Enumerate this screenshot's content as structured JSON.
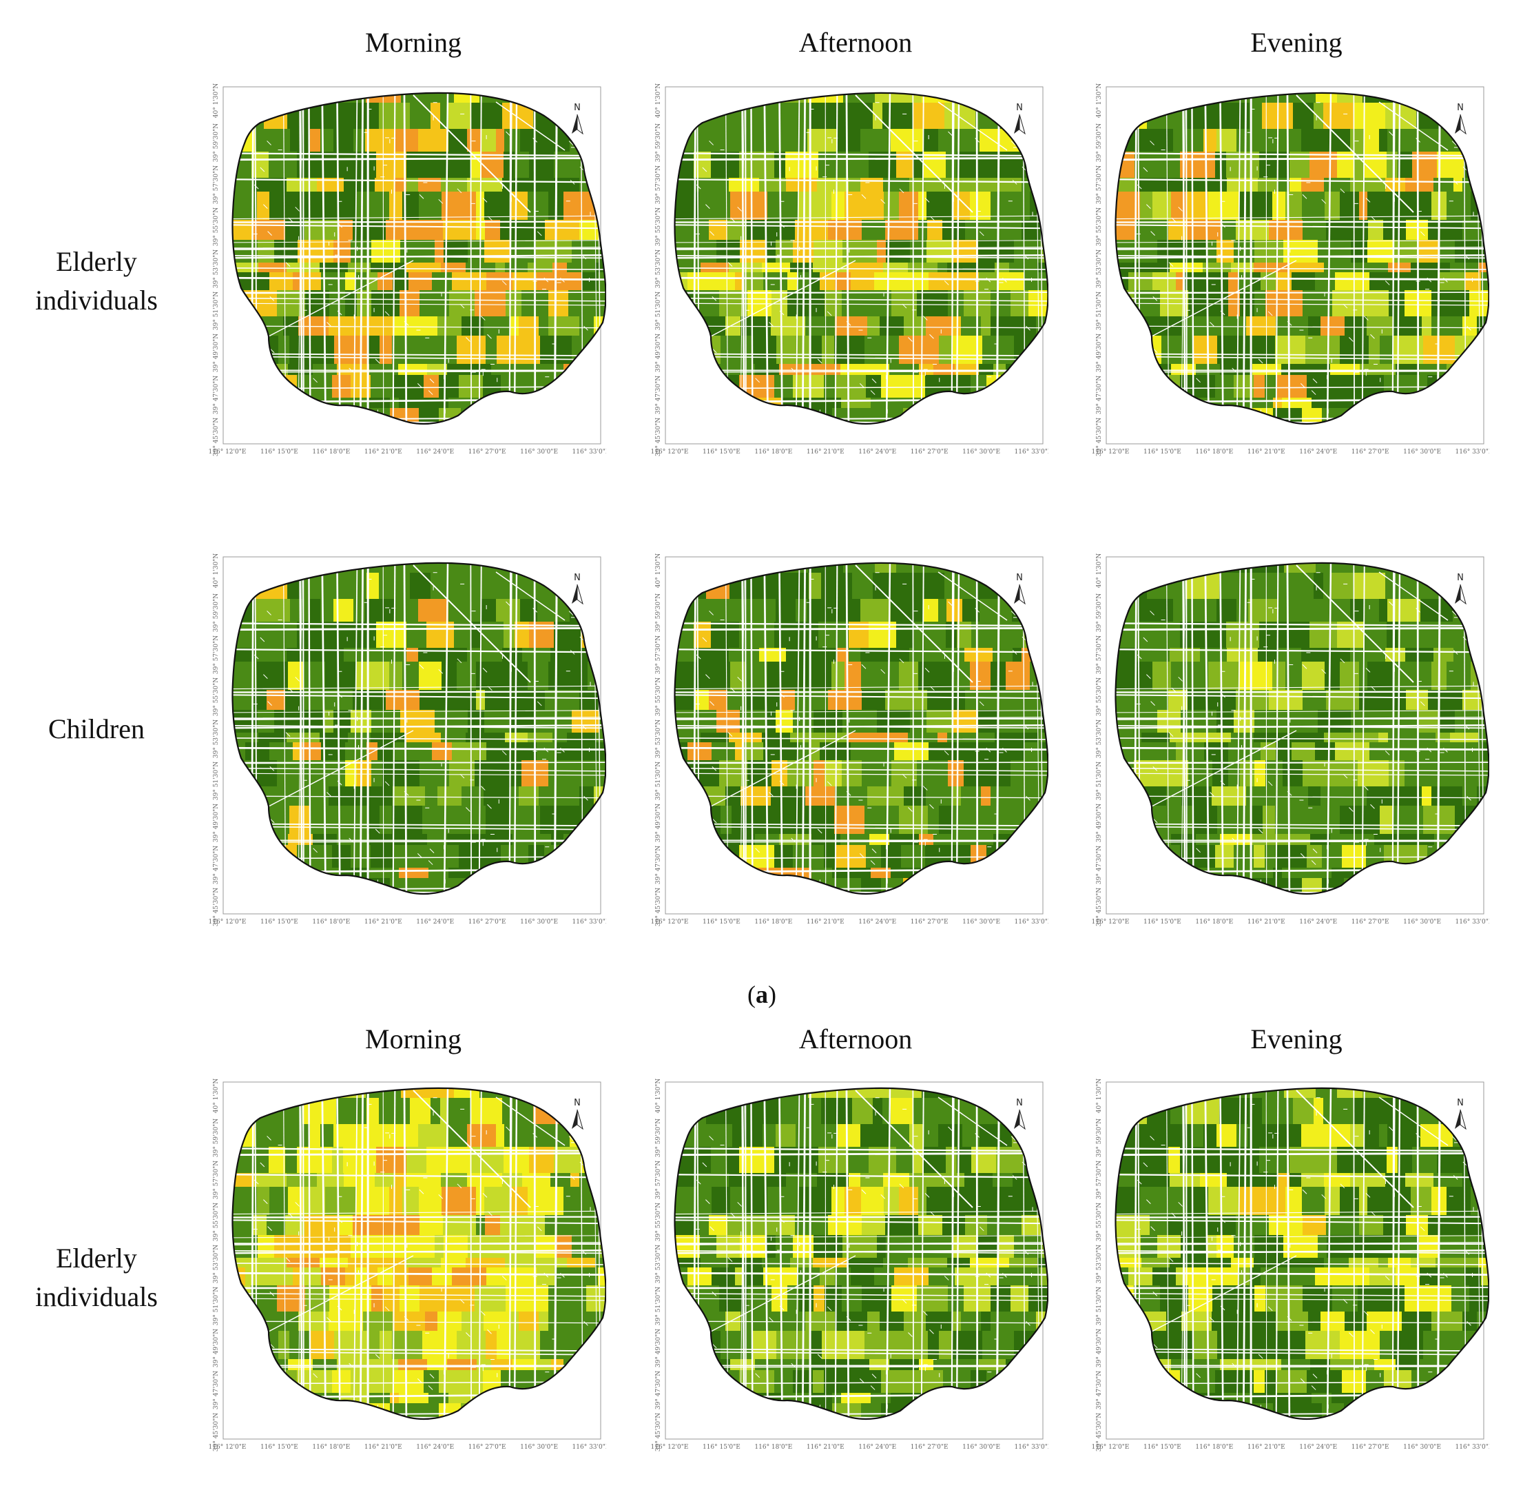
{
  "columns": [
    "Morning",
    "Afternoon",
    "Evening"
  ],
  "sections": [
    {
      "rows": [
        "Elderly individuals",
        "Children"
      ],
      "caption": {
        "open": "(",
        "letter": "a",
        "close": ")"
      }
    },
    {
      "rows": [
        "Elderly individuals"
      ]
    }
  ],
  "north_label": "N",
  "x_ticks": [
    "116° 12'0\"E",
    "116° 15'0\"E",
    "116° 18'0\"E",
    "116° 21'0\"E",
    "116° 24'0\"E",
    "116° 27'0\"E",
    "116° 30'0\"E",
    "116° 33'0\"E"
  ],
  "y_ticks": [
    "39° 45'30\"N",
    "39° 47'30\"N",
    "39° 49'30\"N",
    "39° 51'30\"N",
    "39° 53'30\"N",
    "39° 55'30\"N",
    "39° 57'30\"N",
    "39° 59'30\"N",
    "40° 1'30\"N"
  ],
  "colors": {
    "dark_green": "#2f6d0c",
    "green": "#4a8a16",
    "light_green": "#86b51f",
    "yellow_green": "#c6db2a",
    "yellow": "#f2ef1c",
    "amber": "#f5c418",
    "orange": "#f29a24",
    "road": "#ffffff",
    "outline": "#111111"
  },
  "panels": [
    {
      "section": 0,
      "row": 0,
      "col": 0,
      "mix": [
        0.28,
        0.14,
        0.08,
        0.06,
        0.1,
        0.14,
        0.2
      ]
    },
    {
      "section": 0,
      "row": 0,
      "col": 1,
      "mix": [
        0.3,
        0.14,
        0.14,
        0.1,
        0.16,
        0.1,
        0.06
      ]
    },
    {
      "section": 0,
      "row": 0,
      "col": 2,
      "mix": [
        0.32,
        0.14,
        0.12,
        0.08,
        0.1,
        0.1,
        0.14
      ]
    },
    {
      "section": 0,
      "row": 1,
      "col": 0,
      "mix": [
        0.4,
        0.34,
        0.06,
        0.02,
        0.02,
        0.08,
        0.08
      ]
    },
    {
      "section": 0,
      "row": 1,
      "col": 1,
      "mix": [
        0.4,
        0.32,
        0.06,
        0.02,
        0.02,
        0.04,
        0.14
      ]
    },
    {
      "section": 0,
      "row": 1,
      "col": 2,
      "mix": [
        0.3,
        0.4,
        0.14,
        0.12,
        0.04,
        0.0,
        0.0
      ]
    },
    {
      "section": 1,
      "row": 0,
      "col": 0,
      "mix": [
        0.0,
        0.02,
        0.08,
        0.3,
        0.34,
        0.18,
        0.08
      ]
    },
    {
      "section": 1,
      "row": 0,
      "col": 1,
      "mix": [
        0.36,
        0.18,
        0.16,
        0.16,
        0.14,
        0.0,
        0.0
      ]
    },
    {
      "section": 1,
      "row": 0,
      "col": 2,
      "mix": [
        0.38,
        0.1,
        0.1,
        0.16,
        0.26,
        0.0,
        0.0
      ]
    }
  ]
}
